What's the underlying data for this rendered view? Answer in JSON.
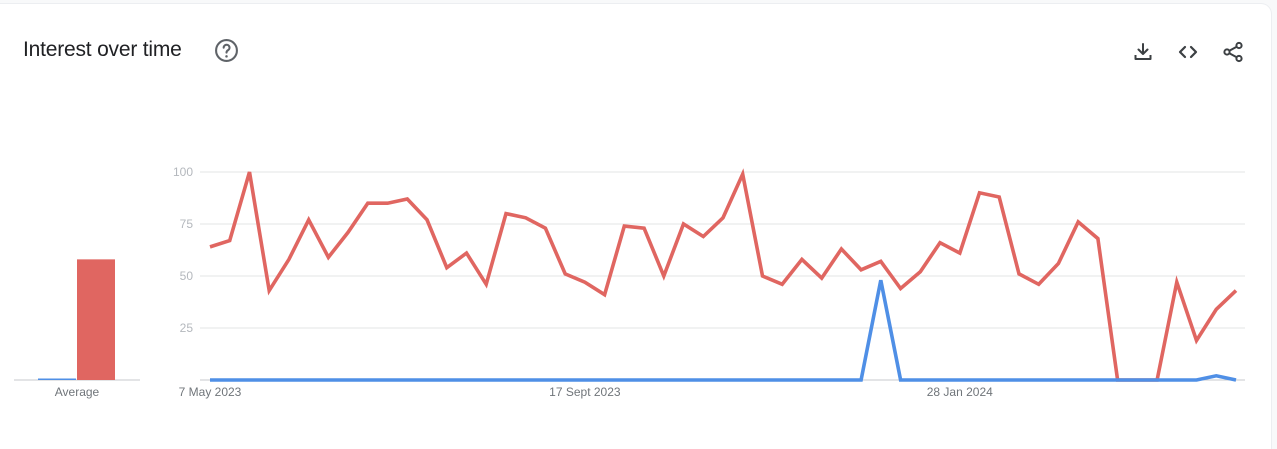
{
  "header": {
    "title": "Interest over time",
    "help_icon": "help-circle-icon",
    "actions": [
      "download-icon",
      "embed-code-icon",
      "share-icon"
    ]
  },
  "chart_data": {
    "type": "line",
    "ylim": [
      0,
      100
    ],
    "yticks": [
      "100",
      "75",
      "50",
      "25"
    ],
    "x_tick_labels": [
      "7 May 2023",
      "17 Sept 2023",
      "28 Jan 2024"
    ],
    "x_tick_positions": [
      "2023-05-07",
      "2023-09-17",
      "2024-01-28"
    ],
    "grid": true,
    "colors": {
      "red": "#e06661",
      "blue": "#4f8fe6"
    },
    "average": {
      "label": "Average",
      "values": [
        0,
        58
      ]
    },
    "x": [
      "2023-05-07",
      "2023-05-14",
      "2023-05-21",
      "2023-05-28",
      "2023-06-04",
      "2023-06-11",
      "2023-06-18",
      "2023-06-25",
      "2023-07-02",
      "2023-07-09",
      "2023-07-16",
      "2023-07-23",
      "2023-07-30",
      "2023-08-06",
      "2023-08-13",
      "2023-08-20",
      "2023-08-27",
      "2023-09-03",
      "2023-09-10",
      "2023-09-17",
      "2023-09-24",
      "2023-10-01",
      "2023-10-08",
      "2023-10-15",
      "2023-10-22",
      "2023-10-29",
      "2023-11-05",
      "2023-11-12",
      "2023-11-19",
      "2023-11-26",
      "2023-12-03",
      "2023-12-10",
      "2023-12-17",
      "2023-12-24",
      "2023-12-31",
      "2024-01-07",
      "2024-01-14",
      "2024-01-21",
      "2024-01-28",
      "2024-02-04",
      "2024-02-11",
      "2024-02-18",
      "2024-02-25",
      "2024-03-03",
      "2024-03-10",
      "2024-03-17",
      "2024-03-24",
      "2024-03-31",
      "2024-04-07",
      "2024-04-14",
      "2024-04-21",
      "2024-04-28",
      "2024-05-05"
    ],
    "series": [
      {
        "color": "#e06661",
        "values": [
          64,
          67,
          100,
          43,
          58,
          77,
          59,
          71,
          85,
          85,
          87,
          77,
          54,
          61,
          46,
          80,
          78,
          73,
          51,
          47,
          41,
          74,
          73,
          50,
          75,
          69,
          78,
          99,
          50,
          46,
          58,
          49,
          63,
          53,
          57,
          44,
          52,
          66,
          61,
          90,
          88,
          51,
          46,
          56,
          76,
          68,
          0,
          0,
          0,
          47,
          19,
          34,
          43
        ]
      },
      {
        "color": "#4f8fe6",
        "values": [
          0,
          0,
          0,
          0,
          0,
          0,
          0,
          0,
          0,
          0,
          0,
          0,
          0,
          0,
          0,
          0,
          0,
          0,
          0,
          0,
          0,
          0,
          0,
          0,
          0,
          0,
          0,
          0,
          0,
          0,
          0,
          0,
          0,
          0,
          48,
          0,
          0,
          0,
          0,
          0,
          0,
          0,
          0,
          0,
          0,
          0,
          0,
          0,
          0,
          0,
          0,
          2,
          0
        ]
      }
    ]
  }
}
